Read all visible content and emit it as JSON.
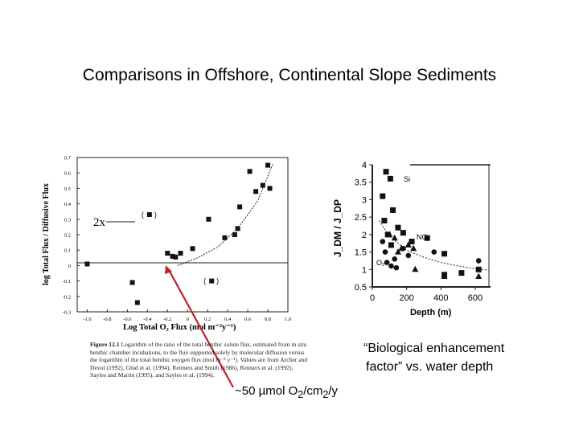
{
  "slide": {
    "title": "Comparisons in Offshore, Continental Slope Sediments",
    "enhancement_label_1": "“Biological enhancement",
    "enhancement_label_2": "factor” vs. water depth",
    "flux_annotation": {
      "prefix": "~50 µmol O",
      "sub1": "2",
      "mid": "/cm",
      "sub2": "2",
      "suffix": "/y"
    },
    "line_color": "#c0202a"
  },
  "figure_caption": {
    "lead": "Figure 12.1",
    "text": " Logarithm of the ratio of the total benthic solute flux, estimated from in situ benthic chamber incubations, to the flux supported solely by molecular diffusion versus the logarithm of the total benthic oxygen flux (mol m⁻² y⁻¹). Values are from Archer and Devol (1992), Glud et al. (1994), Reimers and Smith (1986), Reimers et al. (1992), Sayles and Martin (1995), and Sayles et al. (1994)."
  },
  "chart_data": [
    {
      "type": "scatter",
      "title": "",
      "xlabel": "Log Total O₂ Flux (mol m⁻²y⁻¹)",
      "ylabel": "log Total Flux / Diffusive Flux",
      "xlim": [
        -1.1,
        1.0
      ],
      "ylim": [
        -0.3,
        0.7
      ],
      "x_ticks": [
        "-1.0",
        "-0.8",
        "-0.6",
        "-0.4",
        "-0.2",
        "0",
        "0.2",
        "0.4",
        "0.6",
        "0.8",
        "1.0"
      ],
      "y_ticks": [
        "0.7",
        "0.6",
        "0.5",
        "0.4",
        "0.3",
        "0.2",
        "0.1",
        "0",
        "-0.1",
        "-0.2",
        "-0.3"
      ],
      "annotation": "2x",
      "points": [
        {
          "x": -1.0,
          "y": 0.01
        },
        {
          "x": -0.55,
          "y": -0.11
        },
        {
          "x": -0.5,
          "y": -0.24
        },
        {
          "x": -0.2,
          "y": 0.08
        },
        {
          "x": -0.15,
          "y": 0.06
        },
        {
          "x": -0.12,
          "y": 0.055
        },
        {
          "x": -0.07,
          "y": 0.08
        },
        {
          "x": 0.05,
          "y": 0.11
        },
        {
          "x": 0.21,
          "y": 0.3
        },
        {
          "x": 0.37,
          "y": 0.18
        },
        {
          "x": 0.47,
          "y": 0.2
        },
        {
          "x": 0.52,
          "y": 0.38
        },
        {
          "x": 0.5,
          "y": 0.24
        },
        {
          "x": 0.62,
          "y": 0.61
        },
        {
          "x": 0.68,
          "y": 0.48
        },
        {
          "x": 0.75,
          "y": 0.52
        },
        {
          "x": 0.82,
          "y": 0.5
        },
        {
          "x": 0.8,
          "y": 0.65
        }
      ],
      "bracketed_points": [
        {
          "x": -0.38,
          "y": 0.33
        },
        {
          "x": 0.24,
          "y": -0.1
        }
      ],
      "trend_x": [
        -0.1,
        0.1,
        0.3,
        0.5,
        0.7,
        0.85
      ],
      "trend_y": [
        0.0,
        0.05,
        0.12,
        0.24,
        0.42,
        0.66
      ],
      "reference_line_y": 0
    },
    {
      "type": "scatter",
      "title": "",
      "xlabel": "Depth (m)",
      "ylabel": "J_DM / J_DP",
      "xlim": [
        0,
        680
      ],
      "ylim": [
        0.5,
        4
      ],
      "x_ticks": [
        "0",
        "200",
        "400",
        "600"
      ],
      "y_ticks": [
        "4",
        "3.5",
        "3",
        "2.5",
        "2",
        "1.5",
        "1",
        "0.5"
      ],
      "series": [
        {
          "name": "Si",
          "marker": "square",
          "points": [
            {
              "x": 80,
              "y": 3.8
            },
            {
              "x": 105,
              "y": 3.6
            },
            {
              "x": 60,
              "y": 3.1
            },
            {
              "x": 70,
              "y": 2.4
            },
            {
              "x": 120,
              "y": 2.7
            },
            {
              "x": 150,
              "y": 2.2
            },
            {
              "x": 180,
              "y": 2.05
            },
            {
              "x": 230,
              "y": 1.8
            },
            {
              "x": 320,
              "y": 1.9
            },
            {
              "x": 420,
              "y": 1.45
            },
            {
              "x": 520,
              "y": 0.9
            },
            {
              "x": 620,
              "y": 1.0
            },
            {
              "x": 90,
              "y": 2.0
            },
            {
              "x": 110,
              "y": 1.7
            },
            {
              "x": 420,
              "y": 0.85
            }
          ]
        },
        {
          "name": "NO₃",
          "marker": "triangle",
          "points": [
            {
              "x": 100,
              "y": 2.0
            },
            {
              "x": 130,
              "y": 1.9
            },
            {
              "x": 150,
              "y": 1.5
            },
            {
              "x": 170,
              "y": 1.6
            },
            {
              "x": 210,
              "y": 1.7
            },
            {
              "x": 240,
              "y": 1.6
            },
            {
              "x": 250,
              "y": 1.0
            },
            {
              "x": 420,
              "y": 0.8
            },
            {
              "x": 620,
              "y": 0.8
            }
          ]
        },
        {
          "name": "O₂",
          "marker": "circle",
          "points": [
            {
              "x": 60,
              "y": 1.8
            },
            {
              "x": 75,
              "y": 1.5
            },
            {
              "x": 85,
              "y": 1.2
            },
            {
              "x": 110,
              "y": 1.1
            },
            {
              "x": 130,
              "y": 1.3
            },
            {
              "x": 140,
              "y": 1.05
            },
            {
              "x": 180,
              "y": 1.6
            },
            {
              "x": 210,
              "y": 1.4
            },
            {
              "x": 360,
              "y": 1.5
            },
            {
              "x": 620,
              "y": 1.25
            }
          ]
        }
      ],
      "trend_x": [
        40,
        100,
        200,
        300,
        400,
        500,
        600,
        680
      ],
      "trend_y": [
        2.4,
        1.95,
        1.55,
        1.35,
        1.2,
        1.1,
        1.02,
        0.98
      ]
    }
  ]
}
